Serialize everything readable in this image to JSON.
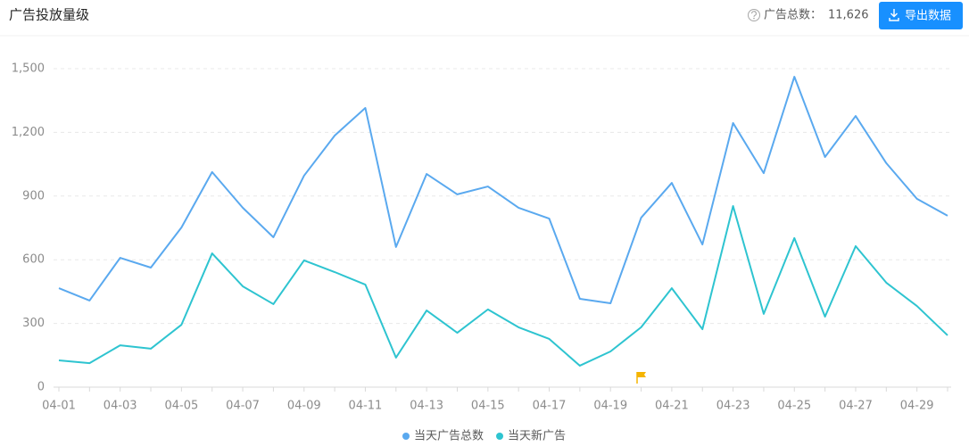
{
  "header": {
    "title": "广告投放量级",
    "total_label": "广告总数：",
    "total_value": "11,626",
    "export_button": "导出数据"
  },
  "chart_data": {
    "type": "line",
    "categories": [
      "04-01",
      null,
      "04-03",
      null,
      "04-05",
      null,
      "04-07",
      null,
      "04-09",
      null,
      "04-11",
      null,
      "04-13",
      null,
      "04-15",
      null,
      "04-17",
      null,
      "04-19",
      null,
      "04-21",
      null,
      "04-23",
      null,
      "04-25",
      null,
      "04-27",
      null,
      "04-29",
      null
    ],
    "series": [
      {
        "name": "当天广告总数",
        "color": "#5aa9ef",
        "values": [
          466,
          408,
          609,
          563,
          752,
          1013,
          845,
          706,
          996,
          1185,
          1315,
          660,
          1004,
          908,
          945,
          845,
          794,
          416,
          395,
          798,
          962,
          672,
          1244,
          1008,
          1462,
          1084,
          1277,
          1055,
          887,
          807
        ]
      },
      {
        "name": "当天新广告",
        "color": "#2ec4d0",
        "values": [
          126,
          113,
          197,
          181,
          294,
          630,
          475,
          391,
          597,
          542,
          483,
          139,
          361,
          256,
          366,
          282,
          227,
          101,
          168,
          282,
          466,
          273,
          853,
          345,
          702,
          332,
          664,
          492,
          382,
          244
        ]
      }
    ],
    "ylim": [
      0,
      1500
    ],
    "yticks": [
      0,
      300,
      600,
      900,
      {
        "value": 1200,
        "label": "1,200"
      },
      {
        "value": 1500,
        "label": "1,500"
      }
    ],
    "grid": true
  }
}
